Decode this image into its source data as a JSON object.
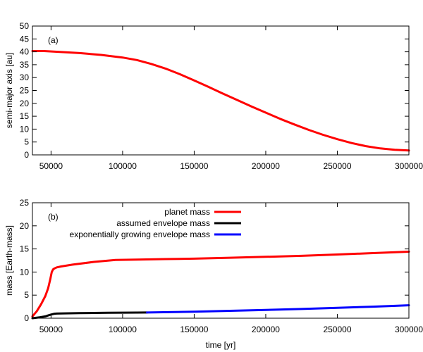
{
  "chart_data": [
    {
      "type": "line",
      "panel_label": "(a)",
      "xlabel": "",
      "ylabel": "semi-major axis [au]",
      "xlim": [
        37000,
        300000
      ],
      "ylim": [
        0,
        50
      ],
      "x_ticks": [
        50000,
        100000,
        150000,
        200000,
        250000,
        300000
      ],
      "x_tick_labels": [
        "50000",
        "100000",
        "150000",
        "200000",
        "250000",
        "300000"
      ],
      "y_ticks": [
        0,
        5,
        10,
        15,
        20,
        25,
        30,
        35,
        40,
        45,
        50
      ],
      "y_tick_labels": [
        "0",
        "5",
        "10",
        "15",
        "20",
        "25",
        "30",
        "35",
        "40",
        "45",
        "50"
      ],
      "grid": false,
      "series": [
        {
          "color": "#ff0000",
          "x": [
            37000,
            45000,
            55000,
            70000,
            85000,
            100000,
            110000,
            120000,
            130000,
            140000,
            150000,
            160000,
            170000,
            180000,
            190000,
            200000,
            210000,
            220000,
            230000,
            240000,
            250000,
            260000,
            270000,
            280000,
            290000,
            300000
          ],
          "y": [
            40.3,
            40.3,
            40.0,
            39.5,
            38.8,
            37.8,
            36.8,
            35.3,
            33.5,
            31.3,
            28.9,
            26.4,
            23.8,
            21.3,
            18.8,
            16.4,
            14.0,
            11.8,
            9.7,
            7.8,
            6.1,
            4.6,
            3.4,
            2.5,
            2.0,
            1.7
          ]
        }
      ]
    },
    {
      "type": "line",
      "panel_label": "(b)",
      "xlabel": "time [yr]",
      "ylabel": "mass [Earth-mass]",
      "xlim": [
        37000,
        300000
      ],
      "ylim": [
        0,
        25
      ],
      "x_ticks": [
        50000,
        100000,
        150000,
        200000,
        250000,
        300000
      ],
      "x_tick_labels": [
        "50000",
        "100000",
        "150000",
        "200000",
        "250000",
        "300000"
      ],
      "y_ticks": [
        0,
        5,
        10,
        15,
        20,
        25
      ],
      "y_tick_labels": [
        "0",
        "5",
        "10",
        "15",
        "20",
        "25"
      ],
      "grid": false,
      "legend_position": "top-right",
      "series": [
        {
          "name": "planet mass",
          "color": "#ff0000",
          "x": [
            37000,
            40000,
            43000,
            46000,
            48000,
            49500,
            50500,
            51500,
            52500,
            54000,
            57000,
            65000,
            80000,
            95000,
            110000,
            130000,
            150000,
            175000,
            200000,
            225000,
            250000,
            275000,
            300000
          ],
          "y": [
            0.4,
            1.5,
            3.0,
            4.8,
            6.5,
            8.5,
            10.0,
            10.6,
            10.8,
            11.0,
            11.2,
            11.6,
            12.2,
            12.6,
            12.7,
            12.8,
            12.9,
            13.1,
            13.3,
            13.5,
            13.8,
            14.1,
            14.4
          ]
        },
        {
          "name": "assumed envelope mass",
          "color": "#000000",
          "x": [
            37000,
            42000,
            46000,
            48000,
            50000,
            52000,
            54000,
            60000,
            70000,
            80000,
            90000,
            100000,
            110000,
            117000
          ],
          "y": [
            0.0,
            0.2,
            0.4,
            0.6,
            0.8,
            0.95,
            1.0,
            1.05,
            1.1,
            1.15,
            1.18,
            1.2,
            1.22,
            1.23
          ]
        },
        {
          "name": "exponentially growing envelope mass",
          "color": "#0000ff",
          "x": [
            117000,
            150000,
            175000,
            200000,
            225000,
            250000,
            275000,
            300000
          ],
          "y": [
            1.23,
            1.4,
            1.6,
            1.8,
            2.0,
            2.25,
            2.5,
            2.8
          ]
        }
      ]
    }
  ]
}
